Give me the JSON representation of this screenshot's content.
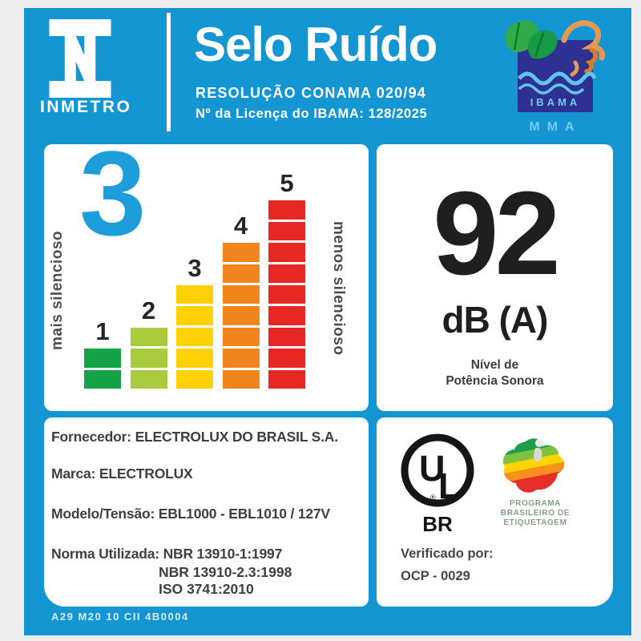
{
  "header": {
    "inmetro_name": "INMETRO",
    "title": "Selo Ruído",
    "resolution": "RESOLUÇÃO CONAMA 020/94",
    "license": "Nº da Licença do IBAMA: 128/2025",
    "ibama_name": "IBAMA",
    "mma_name": "MMA"
  },
  "scale": {
    "selected_level": "3",
    "left_label": "mais silencioso",
    "right_label": "menos silencioso",
    "levels": [
      {
        "n": "1",
        "segments": 2,
        "color": "#16a246"
      },
      {
        "n": "2",
        "segments": 3,
        "color": "#a9cb3d"
      },
      {
        "n": "3",
        "segments": 5,
        "color": "#fdd105"
      },
      {
        "n": "4",
        "segments": 7,
        "color": "#f0851d"
      },
      {
        "n": "5",
        "segments": 9,
        "color": "#e62726"
      }
    ]
  },
  "noise": {
    "value": "92",
    "unit": "dB (A)",
    "caption_line1": "Nível de",
    "caption_line2": "Potência Sonora"
  },
  "details": {
    "fornecedor_label": "Fornecedor:",
    "fornecedor_value": "ELECTROLUX DO BRASIL S.A.",
    "marca_label": "Marca:",
    "marca_value": "ELECTROLUX",
    "modelo_label": "Modelo/Tensão:",
    "modelo_value": "EBL1000 - EBL1010 / 127V",
    "norma_label": "Norma Utilizada:",
    "normas": [
      "NBR 13910-1:1997",
      "NBR 13910-2.3:1998",
      "ISO 3741:2010"
    ]
  },
  "certification": {
    "ul_letters": "UL",
    "ul_sub": "BR",
    "pbe_lines": [
      "PROGRAMA",
      "BRASILEIRO DE",
      "ETIQUETAGEM"
    ],
    "verified_label": "Verificado por:",
    "verified_value": "OCP - 0029"
  },
  "footer_code": "A29 M20 10 CII 4B0004",
  "colors": {
    "label_blue": "#1496d3",
    "accent_level_blue": "#1d9edb",
    "ibama_navy": "#2e3192",
    "ibama_light_blue": "#6fc9ef",
    "text_dark": "#3f3f3f"
  },
  "chart_data": {
    "type": "bar",
    "title": "Selo Ruído noise level scale",
    "categories": [
      "1",
      "2",
      "3",
      "4",
      "5"
    ],
    "values": [
      2,
      3,
      5,
      7,
      9
    ],
    "value_unit": "stacked segments per level",
    "series_colors": [
      "#16a246",
      "#a9cb3d",
      "#fdd105",
      "#f0851d",
      "#e62726"
    ],
    "left_axis_label": "mais silencioso",
    "right_axis_label": "menos silencioso",
    "selected_level": 3,
    "sound_power_level_dBA": 92,
    "legend_position": "none",
    "grid": false
  }
}
